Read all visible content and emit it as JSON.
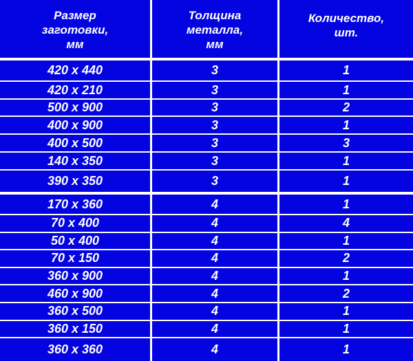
{
  "colors": {
    "background": "#0404e0",
    "lines": "#ffffff",
    "text": "#ffffff"
  },
  "headers": [
    "Размер\nзаготовки,\nмм",
    "Толщина\nметалла,\nмм",
    "Количество,\nшт."
  ],
  "groups": [
    [
      [
        "420 x 440",
        "3",
        "1"
      ],
      [
        "420 x 210",
        "3",
        "1"
      ],
      [
        "500 x 900",
        "3",
        "2"
      ],
      [
        "400 x 900",
        "3",
        "1"
      ],
      [
        "400 x 500",
        "3",
        "3"
      ],
      [
        "140 x 350",
        "3",
        "1"
      ],
      [
        "390 x 350",
        "3",
        "1"
      ]
    ],
    [
      [
        "170 x 360",
        "4",
        "1"
      ],
      [
        "70 x 400",
        "4",
        "4"
      ],
      [
        "50 x 400",
        "4",
        "1"
      ],
      [
        "70 x 150",
        "4",
        "2"
      ],
      [
        "360 x 900",
        "4",
        "1"
      ],
      [
        "460 x 900",
        "4",
        "2"
      ],
      [
        "360 x 500",
        "4",
        "1"
      ],
      [
        "360 x 150",
        "4",
        "1"
      ],
      [
        "360 x 360",
        "4",
        "1"
      ]
    ]
  ]
}
